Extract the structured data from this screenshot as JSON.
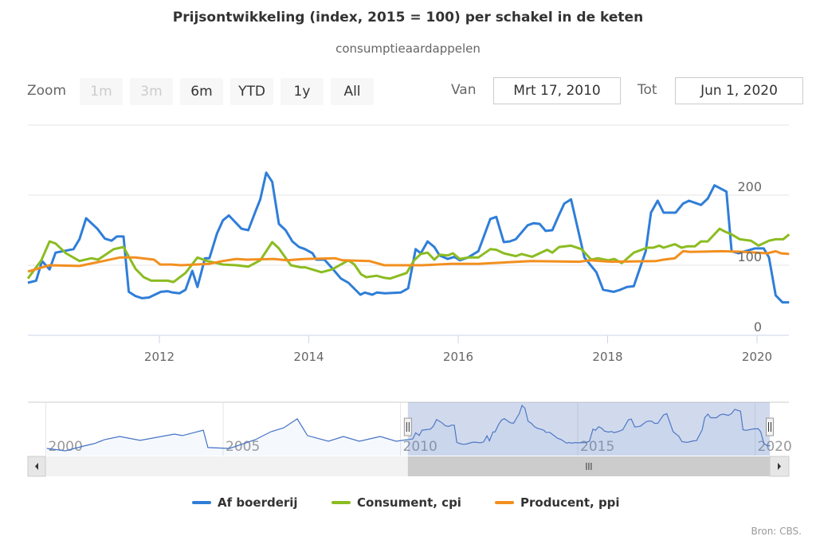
{
  "header": {
    "title": "Prijsontwikkeling (index, 2015 = 100) per schakel in de keten",
    "subtitle": "consumptieaardappelen"
  },
  "range_selector": {
    "zoom_label": "Zoom",
    "buttons": [
      {
        "label": "1m",
        "enabled": false
      },
      {
        "label": "3m",
        "enabled": false
      },
      {
        "label": "6m",
        "enabled": true
      },
      {
        "label": "YTD",
        "enabled": true
      },
      {
        "label": "1y",
        "enabled": true
      },
      {
        "label": "All",
        "enabled": true
      }
    ],
    "from_label": "Van",
    "from_value": "Mrt 17, 2010",
    "to_label": "Tot",
    "to_value": "Jun 1, 2020"
  },
  "credits": "Bron: CBS.",
  "chart_data": {
    "type": "line",
    "title": "Prijsontwikkeling (index, 2015 = 100) per schakel in de keten",
    "subtitle": "consumptieaardappelen",
    "xlabel": "",
    "ylabel": "",
    "xlim": [
      2010.21,
      2020.42
    ],
    "ylim": [
      0,
      250
    ],
    "grid": true,
    "legend_position": "bottom-center",
    "x_ticks": [
      "2012",
      "2014",
      "2016",
      "2018",
      "2020"
    ],
    "x_tick_values": [
      2012,
      2014,
      2016,
      2018,
      2020
    ],
    "y_ticks": [
      "0",
      "100",
      "200"
    ],
    "y_tick_values": [
      0,
      100,
      200
    ],
    "series": [
      {
        "name": "Af boerderij",
        "color": "#2f7ed8",
        "points": [
          [
            2010.24,
            75
          ],
          [
            2010.35,
            78
          ],
          [
            2010.43,
            106
          ],
          [
            2010.53,
            94
          ],
          [
            2010.61,
            118
          ],
          [
            2010.85,
            123
          ],
          [
            2010.93,
            137
          ],
          [
            2011.02,
            167
          ],
          [
            2011.17,
            152
          ],
          [
            2011.27,
            138
          ],
          [
            2011.36,
            135
          ],
          [
            2011.43,
            141
          ],
          [
            2011.52,
            141
          ],
          [
            2011.59,
            62
          ],
          [
            2011.68,
            56
          ],
          [
            2011.77,
            53
          ],
          [
            2011.86,
            54
          ],
          [
            2012.02,
            62
          ],
          [
            2012.11,
            63
          ],
          [
            2012.18,
            61
          ],
          [
            2012.27,
            60
          ],
          [
            2012.35,
            65
          ],
          [
            2012.44,
            92
          ],
          [
            2012.51,
            69
          ],
          [
            2012.61,
            110
          ],
          [
            2012.67,
            110
          ],
          [
            2012.77,
            145
          ],
          [
            2012.85,
            164
          ],
          [
            2012.93,
            171
          ],
          [
            2013.1,
            152
          ],
          [
            2013.19,
            150
          ],
          [
            2013.28,
            175
          ],
          [
            2013.35,
            194
          ],
          [
            2013.43,
            232
          ],
          [
            2013.51,
            219
          ],
          [
            2013.6,
            159
          ],
          [
            2013.69,
            150
          ],
          [
            2013.78,
            134
          ],
          [
            2013.87,
            126
          ],
          [
            2013.95,
            123
          ],
          [
            2014.05,
            117
          ],
          [
            2014.1,
            108
          ],
          [
            2014.21,
            108
          ],
          [
            2014.31,
            96
          ],
          [
            2014.43,
            81
          ],
          [
            2014.53,
            75
          ],
          [
            2014.69,
            58
          ],
          [
            2014.75,
            61
          ],
          [
            2014.85,
            58
          ],
          [
            2014.91,
            61
          ],
          [
            2015.02,
            60
          ],
          [
            2015.23,
            61
          ],
          [
            2015.33,
            67
          ],
          [
            2015.43,
            123
          ],
          [
            2015.5,
            117
          ],
          [
            2015.59,
            134
          ],
          [
            2015.68,
            126
          ],
          [
            2015.75,
            114
          ],
          [
            2015.86,
            109
          ],
          [
            2015.95,
            112
          ],
          [
            2016.02,
            107
          ],
          [
            2016.13,
            111
          ],
          [
            2016.27,
            120
          ],
          [
            2016.43,
            166
          ],
          [
            2016.51,
            169
          ],
          [
            2016.61,
            133
          ],
          [
            2016.69,
            134
          ],
          [
            2016.77,
            137
          ],
          [
            2016.93,
            157
          ],
          [
            2017.01,
            160
          ],
          [
            2017.09,
            159
          ],
          [
            2017.17,
            149
          ],
          [
            2017.26,
            150
          ],
          [
            2017.35,
            172
          ],
          [
            2017.42,
            188
          ],
          [
            2017.51,
            194
          ],
          [
            2017.69,
            111
          ],
          [
            2017.85,
            90
          ],
          [
            2017.94,
            65
          ],
          [
            2018.08,
            62
          ],
          [
            2018.17,
            65
          ],
          [
            2018.26,
            69
          ],
          [
            2018.35,
            70
          ],
          [
            2018.51,
            120
          ],
          [
            2018.58,
            175
          ],
          [
            2018.67,
            192
          ],
          [
            2018.75,
            175
          ],
          [
            2018.91,
            175
          ],
          [
            2019.01,
            188
          ],
          [
            2019.09,
            192
          ],
          [
            2019.25,
            186
          ],
          [
            2019.34,
            195
          ],
          [
            2019.43,
            214
          ],
          [
            2019.59,
            205
          ],
          [
            2019.66,
            120
          ],
          [
            2019.75,
            117
          ],
          [
            2019.97,
            124
          ],
          [
            2020.09,
            124
          ],
          [
            2020.16,
            111
          ],
          [
            2020.25,
            57
          ],
          [
            2020.34,
            47
          ],
          [
            2020.43,
            47
          ]
        ]
      },
      {
        "name": "Consument, cpi",
        "color": "#8bbc21",
        "points": [
          [
            2010.24,
            81
          ],
          [
            2010.42,
            107
          ],
          [
            2010.53,
            134
          ],
          [
            2010.61,
            131
          ],
          [
            2010.75,
            117
          ],
          [
            2010.93,
            106
          ],
          [
            2011.09,
            110
          ],
          [
            2011.18,
            108
          ],
          [
            2011.39,
            123
          ],
          [
            2011.52,
            126
          ],
          [
            2011.68,
            95
          ],
          [
            2011.79,
            83
          ],
          [
            2011.89,
            78
          ],
          [
            2012.11,
            78
          ],
          [
            2012.19,
            76
          ],
          [
            2012.35,
            89
          ],
          [
            2012.51,
            111
          ],
          [
            2012.64,
            106
          ],
          [
            2012.85,
            101
          ],
          [
            2013.03,
            100
          ],
          [
            2013.19,
            98
          ],
          [
            2013.35,
            107
          ],
          [
            2013.51,
            133
          ],
          [
            2013.6,
            124
          ],
          [
            2013.76,
            100
          ],
          [
            2013.89,
            97
          ],
          [
            2013.95,
            97
          ],
          [
            2014.17,
            90
          ],
          [
            2014.31,
            94
          ],
          [
            2014.53,
            107
          ],
          [
            2014.61,
            101
          ],
          [
            2014.7,
            87
          ],
          [
            2014.77,
            83
          ],
          [
            2014.91,
            85
          ],
          [
            2015.01,
            82
          ],
          [
            2015.09,
            81
          ],
          [
            2015.31,
            89
          ],
          [
            2015.41,
            107
          ],
          [
            2015.5,
            116
          ],
          [
            2015.59,
            118
          ],
          [
            2015.68,
            108
          ],
          [
            2015.75,
            115
          ],
          [
            2015.86,
            114
          ],
          [
            2015.93,
            117
          ],
          [
            2016.02,
            109
          ],
          [
            2016.13,
            111
          ],
          [
            2016.27,
            111
          ],
          [
            2016.43,
            123
          ],
          [
            2016.51,
            122
          ],
          [
            2016.61,
            117
          ],
          [
            2016.77,
            113
          ],
          [
            2016.85,
            116
          ],
          [
            2016.99,
            112
          ],
          [
            2017.19,
            122
          ],
          [
            2017.26,
            118
          ],
          [
            2017.35,
            126
          ],
          [
            2017.51,
            128
          ],
          [
            2017.65,
            123
          ],
          [
            2017.78,
            108
          ],
          [
            2017.87,
            110
          ],
          [
            2018.01,
            107
          ],
          [
            2018.09,
            109
          ],
          [
            2018.19,
            103
          ],
          [
            2018.35,
            118
          ],
          [
            2018.53,
            125
          ],
          [
            2018.61,
            125
          ],
          [
            2018.69,
            128
          ],
          [
            2018.75,
            125
          ],
          [
            2018.9,
            130
          ],
          [
            2018.99,
            125
          ],
          [
            2019.07,
            127
          ],
          [
            2019.17,
            127
          ],
          [
            2019.25,
            134
          ],
          [
            2019.34,
            134
          ],
          [
            2019.5,
            152
          ],
          [
            2019.57,
            148
          ],
          [
            2019.66,
            144
          ],
          [
            2019.77,
            137
          ],
          [
            2019.92,
            135
          ],
          [
            2020.02,
            128
          ],
          [
            2020.16,
            135
          ],
          [
            2020.25,
            137
          ],
          [
            2020.35,
            137
          ],
          [
            2020.43,
            144
          ]
        ]
      },
      {
        "name": "Producent, ppi",
        "color": "#f28f1f",
        "points": [
          [
            2010.24,
            91
          ],
          [
            2010.53,
            100
          ],
          [
            2010.93,
            99
          ],
          [
            2011.25,
            106
          ],
          [
            2011.47,
            111
          ],
          [
            2011.68,
            111
          ],
          [
            2011.93,
            108
          ],
          [
            2012.01,
            101
          ],
          [
            2012.16,
            101
          ],
          [
            2012.29,
            100
          ],
          [
            2012.67,
            102
          ],
          [
            2012.85,
            106
          ],
          [
            2013.03,
            109
          ],
          [
            2013.17,
            108
          ],
          [
            2013.53,
            109
          ],
          [
            2013.71,
            107
          ],
          [
            2013.95,
            109
          ],
          [
            2014.35,
            110
          ],
          [
            2014.45,
            107
          ],
          [
            2014.81,
            106
          ],
          [
            2015.01,
            100
          ],
          [
            2015.52,
            100
          ],
          [
            2015.91,
            102
          ],
          [
            2016.27,
            102
          ],
          [
            2016.98,
            106
          ],
          [
            2017.62,
            105
          ],
          [
            2017.76,
            107
          ],
          [
            2018.05,
            105
          ],
          [
            2018.65,
            106
          ],
          [
            2018.75,
            108
          ],
          [
            2018.9,
            110
          ],
          [
            2019.01,
            120
          ],
          [
            2019.11,
            119
          ],
          [
            2019.54,
            120
          ],
          [
            2019.82,
            119
          ],
          [
            2020.14,
            117
          ],
          [
            2020.25,
            120
          ],
          [
            2020.32,
            117
          ],
          [
            2020.43,
            116
          ]
        ]
      }
    ],
    "navigator": {
      "x_ticks": [
        "2000",
        "2005",
        "2010",
        "2015",
        "2020"
      ],
      "x_tick_values": [
        2000,
        2005,
        2010,
        2015,
        2020
      ],
      "range": [
        2000.0,
        2020.43
      ],
      "selected": [
        2010.21,
        2020.42
      ],
      "history_points": [
        [
          2000.03,
          34
        ],
        [
          2000.55,
          23
        ],
        [
          2001.07,
          45
        ],
        [
          2001.36,
          56
        ],
        [
          2001.65,
          74
        ],
        [
          2002.08,
          89
        ],
        [
          2002.66,
          71
        ],
        [
          2003.63,
          100
        ],
        [
          2003.85,
          93
        ],
        [
          2004.44,
          118
        ],
        [
          2004.57,
          38
        ],
        [
          2005.18,
          34
        ],
        [
          2005.9,
          74
        ],
        [
          2006.35,
          111
        ],
        [
          2006.71,
          129
        ],
        [
          2007.09,
          170
        ],
        [
          2007.38,
          93
        ],
        [
          2007.97,
          67
        ],
        [
          2008.39,
          89
        ],
        [
          2008.84,
          67
        ],
        [
          2009.43,
          89
        ],
        [
          2009.88,
          67
        ],
        [
          2010.17,
          74
        ]
      ]
    }
  }
}
